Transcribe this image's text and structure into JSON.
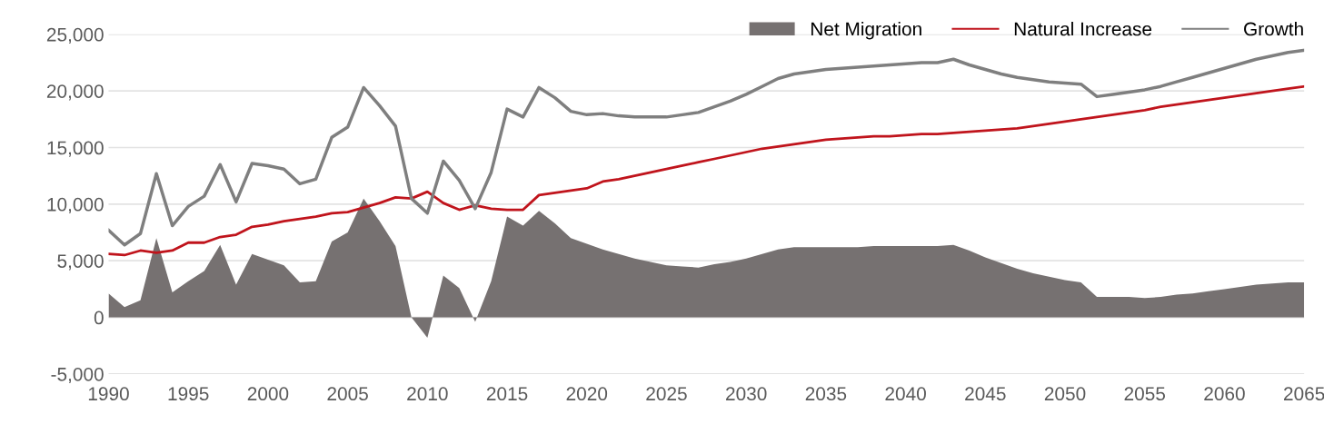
{
  "chart_data": {
    "type": "line",
    "x": [
      1990,
      1991,
      1992,
      1993,
      1994,
      1995,
      1996,
      1997,
      1998,
      1999,
      2000,
      2001,
      2002,
      2003,
      2004,
      2005,
      2006,
      2007,
      2008,
      2009,
      2010,
      2011,
      2012,
      2013,
      2014,
      2015,
      2016,
      2017,
      2018,
      2019,
      2020,
      2021,
      2022,
      2023,
      2024,
      2025,
      2026,
      2027,
      2028,
      2029,
      2030,
      2031,
      2032,
      2033,
      2034,
      2035,
      2036,
      2037,
      2038,
      2039,
      2040,
      2041,
      2042,
      2043,
      2044,
      2045,
      2046,
      2047,
      2048,
      2049,
      2050,
      2051,
      2052,
      2053,
      2054,
      2055,
      2056,
      2057,
      2058,
      2059,
      2060,
      2061,
      2062,
      2063,
      2064,
      2065
    ],
    "series": [
      {
        "name": "Net Migration",
        "type": "area",
        "color": "#767171",
        "values": [
          2100,
          900,
          1500,
          7000,
          2200,
          3200,
          4100,
          6400,
          2900,
          5600,
          5100,
          4600,
          3100,
          3200,
          6700,
          7500,
          10500,
          8500,
          6300,
          0,
          -1800,
          3700,
          2600,
          -400,
          3200,
          8900,
          8100,
          9400,
          8300,
          7000,
          6500,
          6000,
          5600,
          5200,
          4900,
          4600,
          4500,
          4400,
          4700,
          4900,
          5200,
          5600,
          6000,
          6200,
          6200,
          6200,
          6200,
          6200,
          6300,
          6300,
          6300,
          6300,
          6300,
          6400,
          5900,
          5300,
          4800,
          4300,
          3900,
          3600,
          3300,
          3100,
          1800,
          1800,
          1800,
          1700,
          1800,
          2000,
          2100,
          2300,
          2500,
          2700,
          2900,
          3000,
          3100,
          3100
        ]
      },
      {
        "name": "Natural Increase",
        "color": "#c0141c",
        "values": [
          5600,
          5500,
          5900,
          5700,
          5900,
          6600,
          6600,
          7100,
          7300,
          8000,
          8200,
          8500,
          8700,
          8900,
          9200,
          9300,
          9700,
          10100,
          10600,
          10500,
          11100,
          10100,
          9500,
          9900,
          9600,
          9500,
          9500,
          10800,
          11000,
          11200,
          11400,
          12000,
          12200,
          12500,
          12800,
          13100,
          13400,
          13700,
          14000,
          14300,
          14600,
          14900,
          15100,
          15300,
          15500,
          15700,
          15800,
          15900,
          16000,
          16000,
          16100,
          16200,
          16200,
          16300,
          16400,
          16500,
          16600,
          16700,
          16900,
          17100,
          17300,
          17500,
          17700,
          17900,
          18100,
          18300,
          18600,
          18800,
          19000,
          19200,
          19400,
          19600,
          19800,
          20000,
          20200,
          20400
        ]
      },
      {
        "name": "Growth",
        "color": "#7f7f7f",
        "values": [
          7700,
          6400,
          7400,
          12700,
          8100,
          9800,
          10700,
          13500,
          10200,
          13600,
          13400,
          13100,
          11800,
          12200,
          15900,
          16800,
          20300,
          18700,
          16900,
          10500,
          9200,
          13800,
          12100,
          9600,
          12800,
          18400,
          17700,
          20300,
          19400,
          18200,
          17900,
          18000,
          17800,
          17700,
          17700,
          17700,
          17900,
          18100,
          18600,
          19100,
          19700,
          20400,
          21100,
          21500,
          21700,
          21900,
          22000,
          22100,
          22200,
          22300,
          22400,
          22500,
          22500,
          22800,
          22300,
          21900,
          21500,
          21200,
          21000,
          20800,
          20700,
          20600,
          19500,
          19700,
          19900,
          20100,
          20400,
          20800,
          21200,
          21600,
          22000,
          22400,
          22800,
          23100,
          23400,
          23600
        ]
      }
    ],
    "xlim": [
      1990,
      2065
    ],
    "xticks": [
      1990,
      1995,
      2000,
      2005,
      2010,
      2015,
      2020,
      2025,
      2030,
      2035,
      2040,
      2045,
      2050,
      2055,
      2060,
      2065
    ],
    "ylim": [
      -5000,
      25000
    ],
    "yticks": [
      {
        "value": -5000,
        "label": "-5,000"
      },
      0,
      {
        "value": 5000,
        "label": "5,000"
      },
      {
        "value": 10000,
        "label": "10,000"
      },
      {
        "value": 15000,
        "label": "15,000"
      },
      {
        "value": 20000,
        "label": "20,000"
      },
      {
        "value": 25000,
        "label": "25,000"
      }
    ],
    "grid": "y",
    "legend": "top right",
    "marker": "none",
    "line_style": "solid"
  }
}
